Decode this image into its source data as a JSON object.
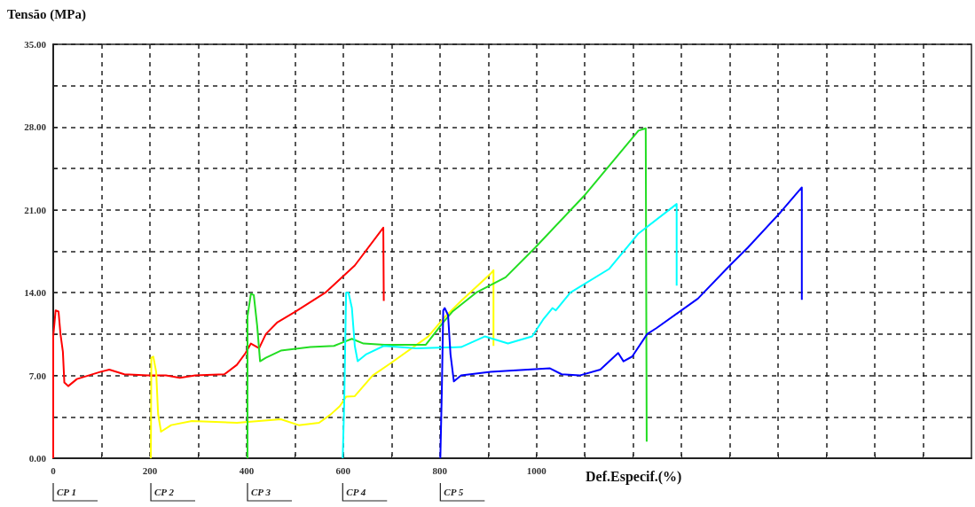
{
  "chart_data": {
    "type": "line",
    "ylabel": "Tensão (MPa)",
    "xlabel": "Def.Especif.(%)",
    "xlim": [
      0,
      1900
    ],
    "ylim": [
      0,
      35
    ],
    "xticks": [
      0,
      {
        "value": 100,
        "label": null
      },
      200,
      {
        "value": 300,
        "label": null
      },
      400,
      {
        "value": 500,
        "label": null
      },
      600,
      {
        "value": 700,
        "label": null
      },
      800,
      {
        "value": 900,
        "label": null
      },
      1000,
      {
        "value": 1100,
        "label": null
      },
      {
        "value": 1200,
        "label": null
      },
      {
        "value": 1300,
        "label": null
      },
      {
        "value": 1400,
        "label": null
      },
      {
        "value": 1500,
        "label": null
      },
      {
        "value": 1600,
        "label": null
      },
      {
        "value": 1700,
        "label": null
      },
      {
        "value": 1800,
        "label": null
      }
    ],
    "yticks": [
      {
        "value": 0,
        "label": "0.00"
      },
      {
        "value": 3.5,
        "label": null
      },
      {
        "value": 7,
        "label": "7.00"
      },
      {
        "value": 10.5,
        "label": null
      },
      {
        "value": 14,
        "label": "14.00"
      },
      {
        "value": 17.5,
        "label": null
      },
      {
        "value": 21,
        "label": "21.00"
      },
      {
        "value": 24.5,
        "label": null
      },
      {
        "value": 28,
        "label": "28.00"
      },
      {
        "value": 31.5,
        "label": null
      },
      {
        "value": 35,
        "label": "35.00"
      }
    ],
    "grid": true,
    "marker": "none",
    "line_style": "solid",
    "series": [
      {
        "name": "CP 1",
        "color": "#ff0000",
        "x": [
          0,
          0,
          5,
          11,
          15,
          20,
          23,
          31,
          49,
          73,
          97,
          116,
          147,
          196,
          233,
          262,
          294,
          354,
          380,
          398,
          409,
          426,
          440,
          464,
          501,
          563,
          624,
          683,
          684
        ],
        "values": [
          0,
          10.3,
          12.5,
          12.4,
          10.5,
          9.0,
          6.4,
          6.1,
          6.7,
          7.0,
          7.3,
          7.5,
          7.1,
          7.0,
          7.0,
          6.8,
          7.0,
          7.1,
          7.9,
          8.9,
          9.7,
          9.3,
          10.5,
          11.5,
          12.4,
          14.0,
          16.3,
          19.5,
          13.3
        ]
      },
      {
        "name": "CP 2",
        "color": "#ffff00",
        "x": [
          202,
          203,
          207,
          213,
          217,
          223,
          244,
          287,
          380,
          471,
          508,
          550,
          574,
          593,
          606,
          624,
          661,
          697,
          776,
          807,
          844,
          905,
          911,
          911
        ],
        "values": [
          0,
          8.5,
          8.6,
          7.3,
          3.75,
          2.25,
          2.8,
          3.15,
          3.0,
          3.3,
          2.8,
          3.0,
          3.7,
          4.4,
          5.2,
          5.25,
          7.0,
          8.0,
          10.3,
          11.8,
          13.3,
          15.6,
          15.9,
          9.5
        ]
      },
      {
        "name": "CP 3",
        "color": "#22dd22",
        "x": [
          402,
          402,
          409,
          415,
          422,
          428,
          440,
          471,
          532,
          581,
          593,
          618,
          642,
          685,
          771,
          807,
          826,
          875,
          936,
          997,
          1101,
          1211,
          1226,
          1228
        ],
        "values": [
          0,
          12.0,
          13.9,
          13.8,
          11.2,
          8.2,
          8.5,
          9.1,
          9.4,
          9.5,
          9.7,
          10.1,
          9.7,
          9.6,
          9.6,
          11.5,
          12.4,
          14.0,
          15.3,
          17.8,
          22.3,
          27.7,
          27.9,
          1.4
        ]
      },
      {
        "name": "CP 4",
        "color": "#00ffff",
        "x": [
          599,
          602,
          606,
          611,
          618,
          624,
          630,
          648,
          684,
          752,
          844,
          893,
          941,
          991,
          1015,
          1033,
          1040,
          1070,
          1150,
          1211,
          1290,
          1290
        ],
        "values": [
          0,
          4.5,
          14.0,
          14.0,
          12.7,
          9.5,
          8.2,
          8.8,
          9.5,
          9.3,
          9.4,
          10.3,
          9.7,
          10.3,
          11.8,
          12.7,
          12.5,
          14.0,
          16.0,
          19.0,
          21.5,
          14.6
        ]
      },
      {
        "name": "CP 5",
        "color": "#0000ff",
        "x": [
          801,
          804,
          807,
          810,
          817,
          822,
          829,
          844,
          905,
          1028,
          1052,
          1089,
          1132,
          1169,
          1180,
          1198,
          1229,
          1248,
          1334,
          1400,
          1437,
          1505,
          1549,
          1549
        ],
        "values": [
          0,
          5.5,
          12.5,
          12.7,
          12.1,
          8.8,
          6.5,
          7.0,
          7.3,
          7.6,
          7.1,
          7.0,
          7.5,
          8.9,
          8.2,
          8.6,
          10.5,
          11.0,
          13.5,
          16.3,
          17.8,
          20.8,
          22.9,
          13.4
        ]
      }
    ]
  }
}
